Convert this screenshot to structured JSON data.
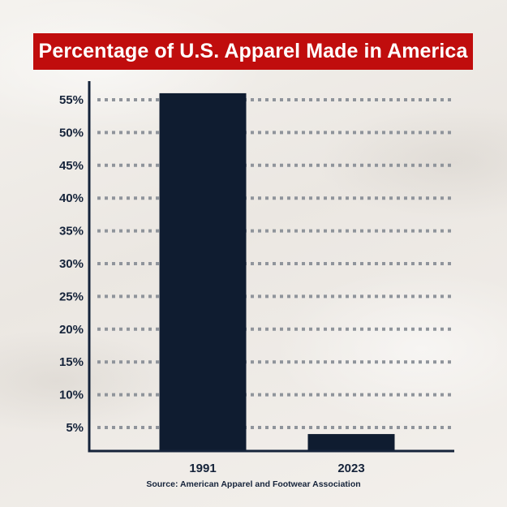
{
  "title": "Percentage of U.S. Apparel Made in America",
  "source": "Source: American Apparel and Footwear Association",
  "colors": {
    "banner": "#c00d0d",
    "bar": "#0f1c30",
    "axis": "#15233a",
    "gridline": "#8f949b"
  },
  "chart_data": {
    "type": "bar",
    "categories": [
      "1991",
      "2023"
    ],
    "values": [
      56,
      4
    ],
    "ylim": [
      0,
      58
    ],
    "yticks": [
      5,
      10,
      15,
      20,
      25,
      30,
      35,
      40,
      45,
      50,
      55
    ],
    "ytick_labels": [
      "5%",
      "10%",
      "15%",
      "20%",
      "25%",
      "30%",
      "35%",
      "40%",
      "45%",
      "50%",
      "55%"
    ],
    "grid": "dotted horizontal",
    "legend": "none"
  }
}
